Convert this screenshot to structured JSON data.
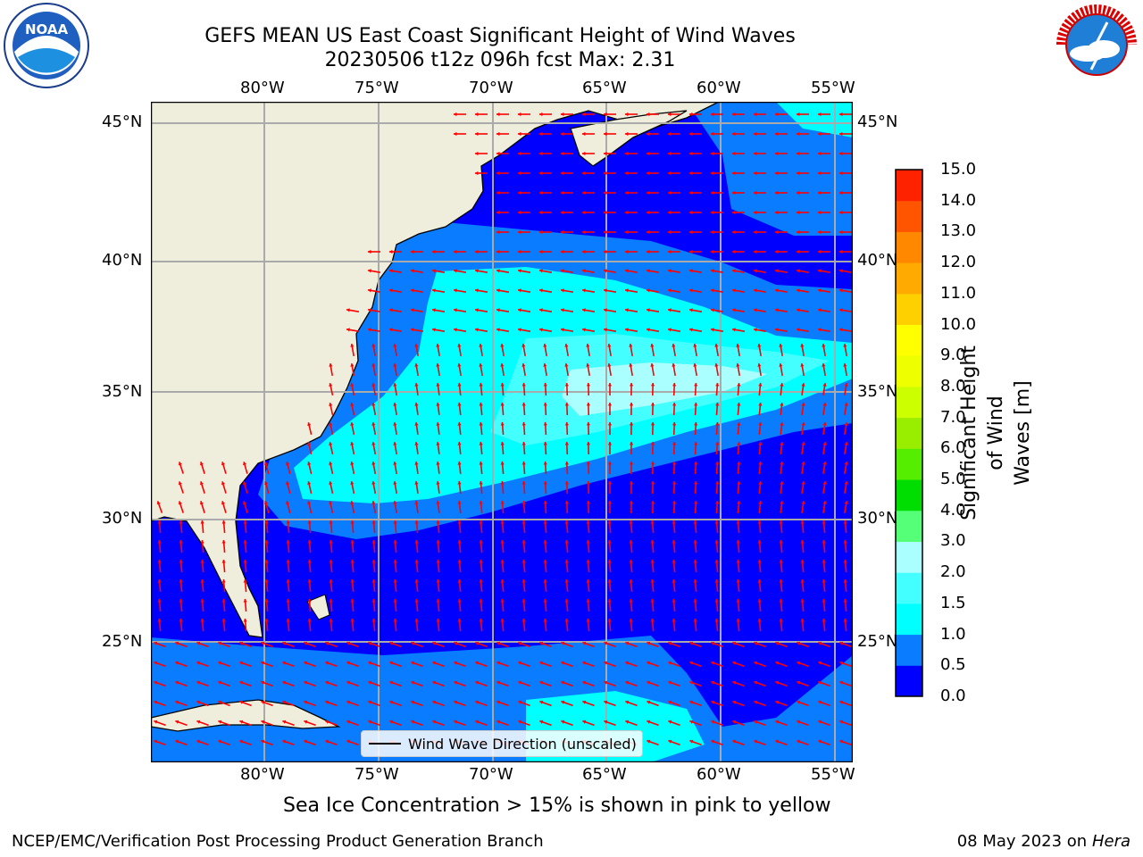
{
  "title": {
    "line1": "GEFS MEAN US East Coast Significant Height of Wind Waves",
    "line2": "20230506 t12z 096h fcst   Max: 2.31"
  },
  "map": {
    "lon_ticks": [
      "80°W",
      "75°W",
      "70°W",
      "65°W",
      "60°W",
      "55°W"
    ],
    "lat_ticks": [
      "45°N",
      "40°N",
      "35°N",
      "30°N",
      "25°N"
    ],
    "extent": {
      "lon": [
        -85,
        -54.5
      ],
      "lat": [
        20.5,
        46
      ]
    },
    "colors": {
      "land": "#efeddc",
      "ocean_low": "#0000ff",
      "ocean_mid": "#0a7cff",
      "vector": "#ff0000"
    }
  },
  "legend": {
    "label": "Wind Wave Direction (unscaled)"
  },
  "colorbar": {
    "label": "Significant Height of Wind Waves [m]",
    "label_line1": "Significant Height of Wind",
    "label_line2": "Waves [m]",
    "ticks": [
      "15.0",
      "14.0",
      "13.0",
      "12.0",
      "11.0",
      "10.0",
      "9.0",
      "8.0",
      "7.0",
      "6.0",
      "5.0",
      "4.0",
      "3.0",
      "2.0",
      "1.5",
      "1.0",
      "0.5",
      "0.0"
    ],
    "levels": [
      0.0,
      0.5,
      1.0,
      1.5,
      2.0,
      3.0,
      4.0,
      5.0,
      6.0,
      7.0,
      8.0,
      9.0,
      10.0,
      11.0,
      12.0,
      13.0,
      14.0,
      15.0
    ],
    "colors": [
      "#0000ff",
      "#0a7cff",
      "#00ffff",
      "#44ffff",
      "#aaffff",
      "#55ff77",
      "#00dd00",
      "#55ee00",
      "#99ee00",
      "#ccff00",
      "#eeff00",
      "#ffff00",
      "#ffd000",
      "#ffaa00",
      "#ff8800",
      "#ff5500",
      "#ff2200"
    ]
  },
  "caption": "Sea Ice Concentration > 15% is shown in pink to yellow",
  "footer": {
    "left": "NCEP/EMC/Verification Post Processing Product Generation Branch",
    "right_date": "08 May 2023 on",
    "right_machine": "Hera"
  },
  "logos": {
    "left": "NOAA",
    "right_text": "NATIONAL WEATHER SERVICE"
  }
}
